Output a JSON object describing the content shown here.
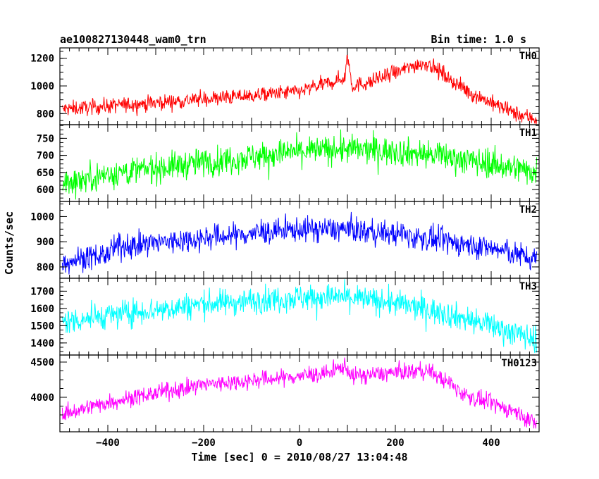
{
  "header": {
    "title": "ae100827130448_wam0_trn",
    "bin_time": "Bin time: 1.0 s"
  },
  "chart_data": {
    "type": "line",
    "xlabel": "Time [sec] 0 = 2010/08/27 13:04:48",
    "ylabel": "Counts/sec",
    "xlim": [
      -500,
      500
    ],
    "x_ticks": [
      -400,
      -200,
      0,
      200,
      400
    ],
    "x_tick_labels": [
      "−400",
      "−200",
      "0",
      "200",
      "400"
    ],
    "panels": [
      {
        "name": "TH0",
        "color": "#ff0000",
        "ylim": [
          720,
          1275
        ],
        "y_ticks": [
          800,
          1000,
          1200
        ],
        "y_tick_labels": [
          "800",
          "1000",
          "1200"
        ],
        "trend": [
          [
            -500,
            830
          ],
          [
            -300,
            880
          ],
          [
            -100,
            930
          ],
          [
            0,
            960
          ],
          [
            60,
            1020
          ],
          [
            95,
            1060
          ],
          [
            100,
            1230
          ],
          [
            110,
            1000
          ],
          [
            150,
            1030
          ],
          [
            250,
            1160
          ],
          [
            270,
            1160
          ],
          [
            350,
            960
          ],
          [
            450,
            800
          ],
          [
            495,
            760
          ]
        ],
        "noise": 40
      },
      {
        "name": "TH1",
        "color": "#00ff00",
        "ylim": [
          565,
          790
        ],
        "y_ticks": [
          600,
          650,
          700,
          750
        ],
        "y_tick_labels": [
          "600",
          "650",
          "700",
          "750"
        ],
        "trend": [
          [
            -500,
            615
          ],
          [
            -400,
            645
          ],
          [
            -200,
            680
          ],
          [
            0,
            712
          ],
          [
            100,
            718
          ],
          [
            200,
            712
          ],
          [
            300,
            698
          ],
          [
            400,
            675
          ],
          [
            495,
            652
          ]
        ],
        "noise": 30
      },
      {
        "name": "TH2",
        "color": "#0000ff",
        "ylim": [
          755,
          1060
        ],
        "y_ticks": [
          800,
          900,
          1000
        ],
        "y_tick_labels": [
          "800",
          "900",
          "1000"
        ],
        "trend": [
          [
            -500,
            820
          ],
          [
            -400,
            850
          ],
          [
            -380,
            880
          ],
          [
            -200,
            915
          ],
          [
            0,
            950
          ],
          [
            100,
            950
          ],
          [
            200,
            930
          ],
          [
            400,
            875
          ],
          [
            495,
            830
          ]
        ],
        "noise": 35
      },
      {
        "name": "TH3",
        "color": "#00ffff",
        "ylim": [
          1330,
          1775
        ],
        "y_ticks": [
          1400,
          1500,
          1600,
          1700
        ],
        "y_tick_labels": [
          "1400",
          "1500",
          "1600",
          "1700"
        ],
        "trend": [
          [
            -500,
            1520
          ],
          [
            -400,
            1560
          ],
          [
            -200,
            1625
          ],
          [
            0,
            1665
          ],
          [
            100,
            1665
          ],
          [
            200,
            1630
          ],
          [
            300,
            1575
          ],
          [
            400,
            1500
          ],
          [
            495,
            1420
          ]
        ],
        "noise": 55
      },
      {
        "name": "TH0123",
        "color": "#ff00ff",
        "ylim": [
          3510,
          4600
        ],
        "y_ticks": [
          4000,
          4500
        ],
        "y_tick_labels": [
          "4000",
          "4500"
        ],
        "trend": [
          [
            -500,
            3750
          ],
          [
            -400,
            3930
          ],
          [
            -200,
            4180
          ],
          [
            0,
            4300
          ],
          [
            60,
            4340
          ],
          [
            95,
            4450
          ],
          [
            110,
            4300
          ],
          [
            250,
            4380
          ],
          [
            270,
            4380
          ],
          [
            350,
            4020
          ],
          [
            450,
            3800
          ],
          [
            495,
            3620
          ]
        ],
        "noise": 85
      }
    ]
  }
}
